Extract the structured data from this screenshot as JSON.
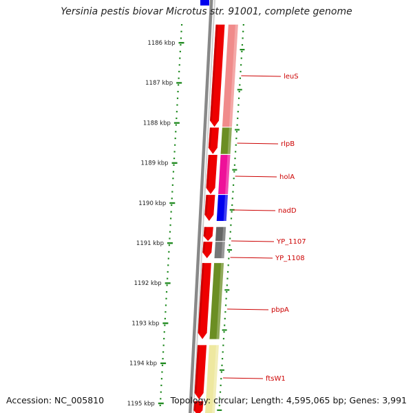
{
  "title": "Yersinia pestis biovar Microtus str. 91001, complete genome",
  "accession": "Accession: NC_005810",
  "topology": "Topology: circular; Length: 4,595,065 bp; Genes: 3,991",
  "ticks": [
    {
      "label": "1186 kbp"
    },
    {
      "label": "1187 kbp"
    },
    {
      "label": "1188 kbp"
    },
    {
      "label": "1189 kbp"
    },
    {
      "label": "1190 kbp"
    },
    {
      "label": "1191 kbp"
    },
    {
      "label": "1192 kbp"
    },
    {
      "label": "1193 kbp"
    },
    {
      "label": "1194 kbp"
    },
    {
      "label": "1195 kbp"
    }
  ],
  "genes": [
    {
      "name": "leuS",
      "color": "#f08b8b"
    },
    {
      "name": "rlpB",
      "color": "#6b8e23"
    },
    {
      "name": "holA",
      "color": "#ee1199"
    },
    {
      "name": "nadD",
      "color": "#0000ee"
    },
    {
      "name": "YP_1107",
      "color": "#666666"
    },
    {
      "name": "YP_1108",
      "color": "#777777"
    },
    {
      "name": "pbpA",
      "color": "#6b8e23"
    },
    {
      "name": "ftsW1",
      "color": "#eee8a0"
    }
  ],
  "colors": {
    "cds": "#ee0000",
    "backbone": "#999999",
    "tick": "#228b22",
    "label": "#cc0000",
    "top_partial": "#0000ee"
  }
}
